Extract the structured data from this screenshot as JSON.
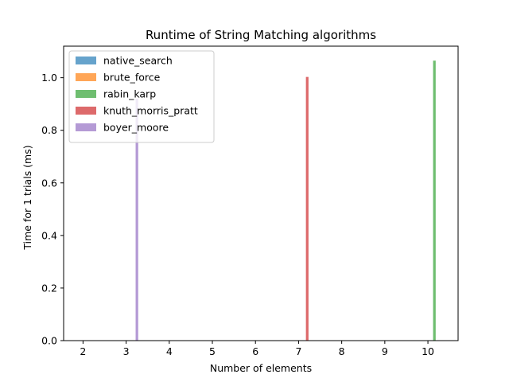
{
  "chart_data": {
    "type": "bar",
    "title": "Runtime of String Matching algorithms",
    "xlabel": "Number of elements",
    "ylabel": "Time for 1 trials (ms)",
    "xlim": [
      1.55,
      10.7
    ],
    "ylim": [
      0,
      1.12
    ],
    "xticks": [
      2,
      3,
      4,
      5,
      6,
      7,
      8,
      9,
      10
    ],
    "yticks": [
      0.0,
      0.2,
      0.4,
      0.6,
      0.8,
      1.0
    ],
    "bar_width": 0.06,
    "legend_position": "upper-left",
    "series": [
      {
        "name": "native_search",
        "color": "#5599c7",
        "points": []
      },
      {
        "name": "brute_force",
        "color": "#ff9c45",
        "points": []
      },
      {
        "name": "rabin_karp",
        "color": "#5fb760",
        "points": [
          {
            "x": 10.15,
            "y": 1.065
          }
        ]
      },
      {
        "name": "knuth_morris_pratt",
        "color": "#d95a5b",
        "points": [
          {
            "x": 7.2,
            "y": 1.003
          }
        ]
      },
      {
        "name": "boyer_moore",
        "color": "#ac8fd0",
        "points": [
          {
            "x": 3.25,
            "y": 0.92
          }
        ]
      }
    ]
  }
}
